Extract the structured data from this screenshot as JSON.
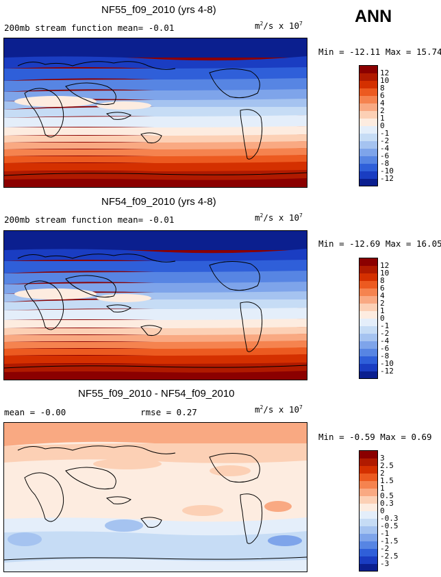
{
  "season": "ANN",
  "units_base": "m",
  "units_exp": "2",
  "units_rest": "/s x 10",
  "units_pow": "7",
  "panels": [
    {
      "title": "NF55_f09_2010 (yrs 4-8)",
      "left_text": "200mb stream function  mean=  -0.01",
      "right_text": "",
      "stats": "Min = -12.11 Max =  15.74",
      "levels": [
        "12",
        "10",
        "8",
        "6",
        "4",
        "2",
        "1",
        "0",
        "-1",
        "-2",
        "-4",
        "-6",
        "-8",
        "-10",
        "-12"
      ]
    },
    {
      "title": "NF54_f09_2010 (yrs 4-8)",
      "left_text": "200mb stream function  mean=  -0.01",
      "right_text": "",
      "stats": "Min = -12.69 Max =  16.05",
      "levels": [
        "12",
        "10",
        "8",
        "6",
        "4",
        "2",
        "1",
        "0",
        "-1",
        "-2",
        "-4",
        "-6",
        "-8",
        "-10",
        "-12"
      ]
    },
    {
      "title": "NF55_f09_2010 - NF54_f09_2010",
      "left_text": "mean =  -0.00",
      "right_text": "rmse =   0.27",
      "stats": "Min =  -0.59 Max =    0.69",
      "levels": [
        "3",
        "2.5",
        "2",
        "1.5",
        "1",
        "0.5",
        "0.3",
        "0",
        "-0.3",
        "-0.5",
        "-1",
        "-1.5",
        "-2",
        "-2.5",
        "-3"
      ]
    }
  ],
  "colors": {
    "scale": [
      "#8b0000",
      "#b01a00",
      "#d43000",
      "#ec5a20",
      "#f5834f",
      "#f9a982",
      "#fcd0b5",
      "#fdece0",
      "#e4eefa",
      "#c6dcf5",
      "#a5c3f0",
      "#7ea4ea",
      "#5785e3",
      "#2f5fd9",
      "#1a3dc2",
      "#0b1f8f"
    ]
  }
}
